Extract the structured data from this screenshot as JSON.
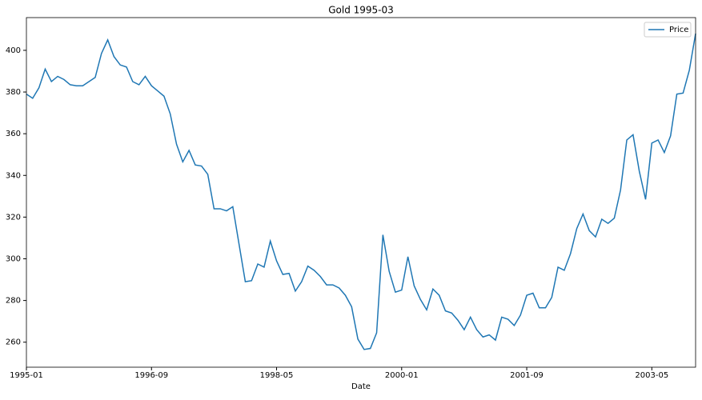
{
  "chart_data": {
    "type": "line",
    "title": "Gold 1995-03",
    "xlabel": "Date",
    "x": [
      "1995-01",
      "1995-02",
      "1995-03",
      "1995-04",
      "1995-05",
      "1995-06",
      "1995-07",
      "1995-08",
      "1995-09",
      "1995-10",
      "1995-11",
      "1995-12",
      "1996-01",
      "1996-02",
      "1996-03",
      "1996-04",
      "1996-05",
      "1996-06",
      "1996-07",
      "1996-08",
      "1996-09",
      "1996-10",
      "1996-11",
      "1996-12",
      "1997-01",
      "1997-02",
      "1997-03",
      "1997-04",
      "1997-05",
      "1997-06",
      "1997-07",
      "1997-08",
      "1997-09",
      "1997-10",
      "1997-11",
      "1997-12",
      "1998-01",
      "1998-02",
      "1998-03",
      "1998-04",
      "1998-05",
      "1998-06",
      "1998-07",
      "1998-08",
      "1998-09",
      "1998-10",
      "1998-11",
      "1998-12",
      "1999-01",
      "1999-02",
      "1999-03",
      "1999-04",
      "1999-05",
      "1999-06",
      "1999-07",
      "1999-08",
      "1999-09",
      "1999-10",
      "1999-11",
      "1999-12",
      "2000-01",
      "2000-02",
      "2000-03",
      "2000-04",
      "2000-05",
      "2000-06",
      "2000-07",
      "2000-08",
      "2000-09",
      "2000-10",
      "2000-11",
      "2000-12",
      "2001-01",
      "2001-02",
      "2001-03",
      "2001-04",
      "2001-05",
      "2001-06",
      "2001-07",
      "2001-08",
      "2001-09",
      "2001-10",
      "2001-11",
      "2001-12",
      "2002-01",
      "2002-02",
      "2002-03",
      "2002-04",
      "2002-05",
      "2002-06",
      "2002-07",
      "2002-08",
      "2002-09",
      "2002-10",
      "2002-11",
      "2002-12",
      "2003-01",
      "2003-02",
      "2003-03",
      "2003-04",
      "2003-05",
      "2003-06",
      "2003-07",
      "2003-08",
      "2003-09",
      "2003-10",
      "2003-11",
      "2003-12"
    ],
    "series": [
      {
        "name": "Price",
        "color": "#1f77b4",
        "values": [
          379,
          377,
          382,
          391,
          385,
          387.5,
          386,
          383.5,
          383,
          383,
          385,
          387,
          398.5,
          405,
          397,
          393,
          392,
          385,
          383.5,
          387.5,
          383,
          380.5,
          378,
          369.5,
          355,
          346.5,
          352,
          345,
          344.5,
          340.5,
          324,
          324,
          323,
          325,
          307,
          289,
          289.5,
          297.5,
          296,
          308.5,
          299,
          292.5,
          293,
          284.5,
          289,
          296.5,
          294.5,
          291.5,
          287.5,
          287.5,
          286,
          282.5,
          277,
          261.5,
          256.5,
          257,
          264.5,
          311.5,
          294,
          284,
          285,
          301,
          287,
          280.5,
          275.5,
          285.5,
          282.5,
          275,
          274,
          270.5,
          266,
          272,
          266,
          262.5,
          263.5,
          261,
          272,
          271,
          268,
          273,
          282.5,
          283.5,
          276.5,
          276.5,
          281.5,
          296,
          294.5,
          302.5,
          314.5,
          321.5,
          313.5,
          310.5,
          319,
          317,
          319.5,
          333,
          357,
          359.5,
          342,
          328.5,
          355.5,
          357,
          351,
          359,
          379,
          379.5,
          390.5,
          408
        ]
      }
    ],
    "xlim": [
      "1995-01",
      "2003-12"
    ],
    "xticks": [
      "1995-01",
      "1996-09",
      "1998-05",
      "2000-01",
      "2001-09",
      "2003-05"
    ],
    "ylim": [
      248,
      415.7
    ],
    "yticks": [
      260,
      280,
      300,
      320,
      340,
      360,
      380,
      400
    ],
    "legend": "upper right"
  }
}
